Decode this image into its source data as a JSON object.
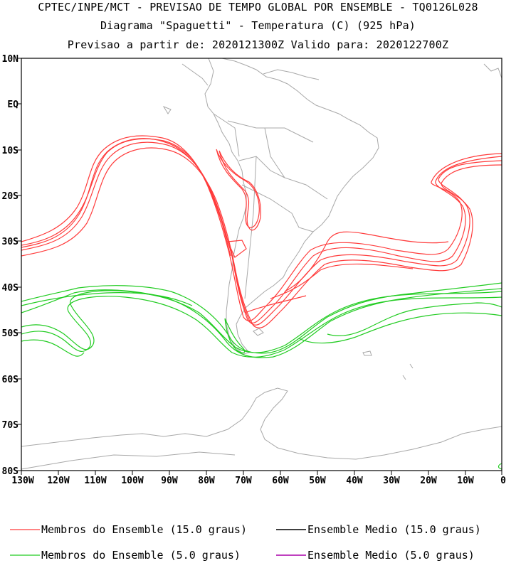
{
  "title": {
    "line1": "CPTEC/INPE/MCT - PREVISAO DE TEMPO GLOBAL POR ENSEMBLE - TQ0126L028",
    "line2": "Diagrama \"Spaguetti\" - Temperatura (C) (925 hPa)",
    "line3": "Previsao a partir de: 2020121300Z  Valido para: 2020122700Z"
  },
  "axes": {
    "lat_labels": [
      "10N",
      "EQ",
      "10S",
      "20S",
      "30S",
      "40S",
      "50S",
      "60S",
      "70S",
      "80S"
    ],
    "lon_labels": [
      "130W",
      "120W",
      "110W",
      "100W",
      "90W",
      "80W",
      "70W",
      "60W",
      "50W",
      "40W",
      "30W",
      "20W",
      "10W",
      "0"
    ]
  },
  "legend": {
    "members_15": "Membros do Ensemble (15.0 graus)",
    "mean_15": "Ensemble Medio (15.0 graus)",
    "members_5": "Membros do Ensemble (5.0 graus)",
    "mean_5": "Ensemble Medio (5.0 graus)"
  },
  "colors": {
    "members_15": "#ff3b3b",
    "mean_15": "#000000",
    "members_5": "#22cc22",
    "mean_5": "#aa00aa",
    "coastline": "#a8a8a8"
  }
}
